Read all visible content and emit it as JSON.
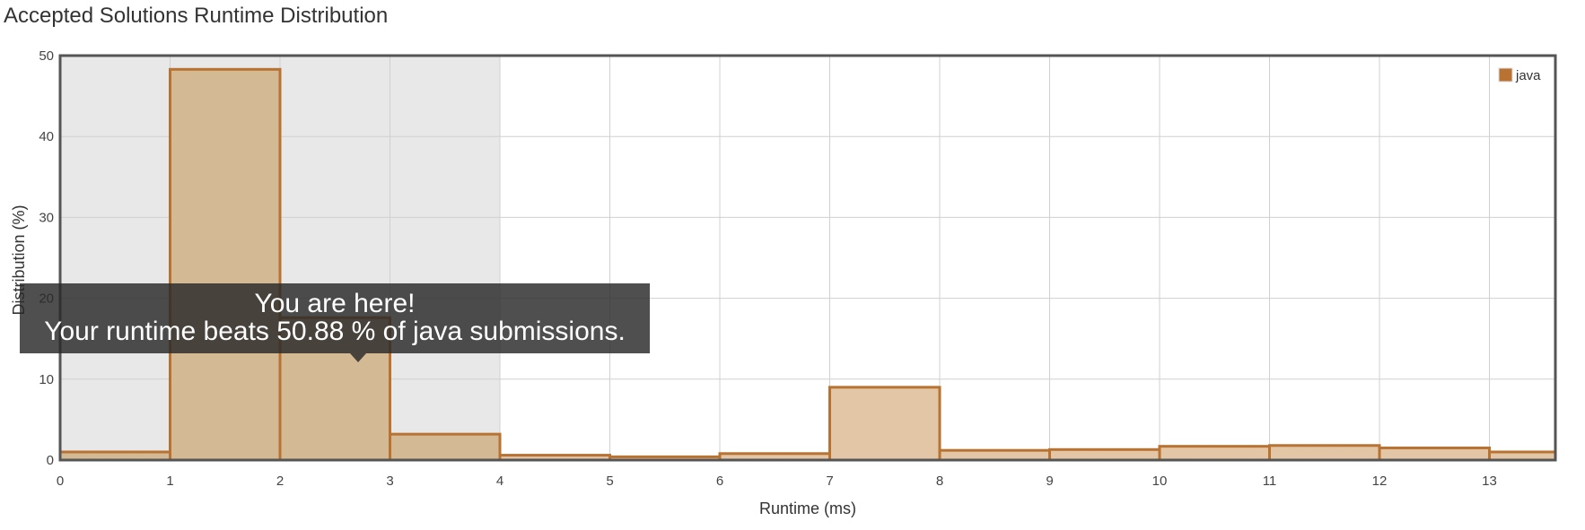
{
  "page": {
    "title": "Accepted Solutions Runtime Distribution"
  },
  "chart_data": {
    "type": "bar",
    "xlabel": "Runtime (ms)",
    "ylabel": "Distribution (%)",
    "xlim": [
      0,
      13.6
    ],
    "ylim": [
      0,
      50
    ],
    "xticks": [
      0,
      1,
      2,
      3,
      4,
      5,
      6,
      7,
      8,
      9,
      10,
      11,
      12,
      13
    ],
    "yticks": [
      0,
      10,
      20,
      30,
      40,
      50
    ],
    "grid": true,
    "legend": {
      "placement": "top-right",
      "entries": [
        "java"
      ]
    },
    "highlight_range": [
      0,
      4
    ],
    "highlight_color": "#e8e8e8",
    "bar_stroke": "#b87333",
    "bar_fill_highlighted": "#d4b995",
    "bar_fill": "#e2c6a6",
    "series": [
      {
        "name": "java",
        "bins": [
          {
            "x0": 0,
            "x1": 1,
            "value": 1.0
          },
          {
            "x0": 1,
            "x1": 2,
            "value": 48.3
          },
          {
            "x0": 2,
            "x1": 3,
            "value": 17.6
          },
          {
            "x0": 3,
            "x1": 4,
            "value": 3.2
          },
          {
            "x0": 4,
            "x1": 5,
            "value": 0.6
          },
          {
            "x0": 5,
            "x1": 6,
            "value": 0.4
          },
          {
            "x0": 6,
            "x1": 7,
            "value": 0.8
          },
          {
            "x0": 7,
            "x1": 8,
            "value": 9.0
          },
          {
            "x0": 8,
            "x1": 9,
            "value": 1.2
          },
          {
            "x0": 9,
            "x1": 10,
            "value": 1.3
          },
          {
            "x0": 10,
            "x1": 11,
            "value": 1.7
          },
          {
            "x0": 11,
            "x1": 12,
            "value": 1.8
          },
          {
            "x0": 12,
            "x1": 13,
            "value": 1.5
          },
          {
            "x0": 13,
            "x1": 13.6,
            "value": 1.0
          }
        ]
      }
    ],
    "annotation": {
      "line1": "You are here!",
      "line2": "Your runtime beats 50.88 % of java submissions.",
      "x": 2.5
    }
  }
}
